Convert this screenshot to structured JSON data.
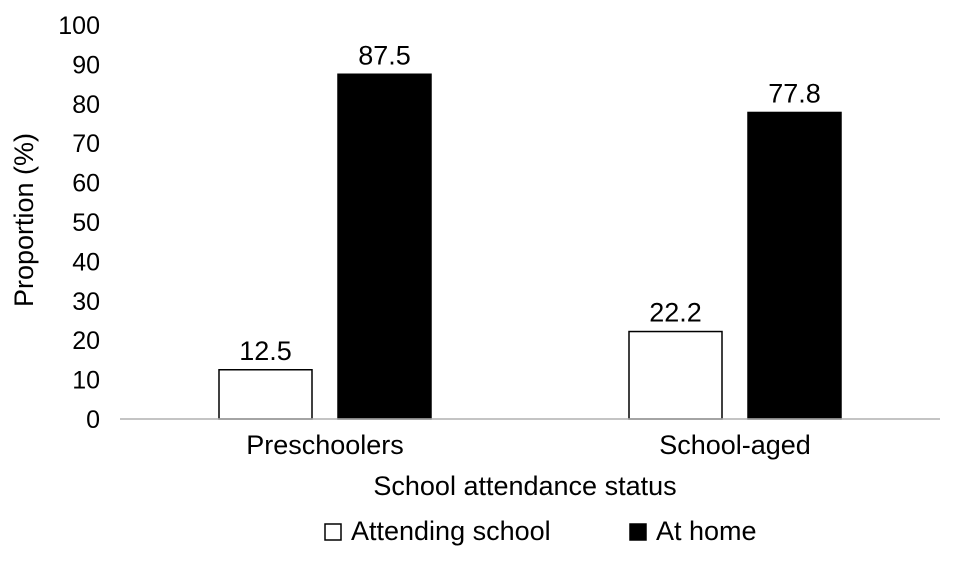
{
  "chart_data": {
    "type": "bar",
    "categories": [
      "Preschoolers",
      "School-aged"
    ],
    "series": [
      {
        "name": "Attending school",
        "values": [
          12.5,
          22.2
        ],
        "color": "#ffffff",
        "stroke": "#000000"
      },
      {
        "name": "At home",
        "values": [
          87.5,
          77.8
        ],
        "color": "#000000",
        "stroke": "#000000"
      }
    ],
    "data_labels": [
      [
        "12.5",
        "22.2"
      ],
      [
        "87.5",
        "77.8"
      ]
    ],
    "yticks": [
      0,
      10,
      20,
      30,
      40,
      50,
      60,
      70,
      80,
      90,
      100
    ],
    "ylim": [
      0,
      100
    ],
    "xlabel": "School attendance status",
    "ylabel": "Proportion (%)",
    "grid": false,
    "legend_position": "bottom"
  }
}
